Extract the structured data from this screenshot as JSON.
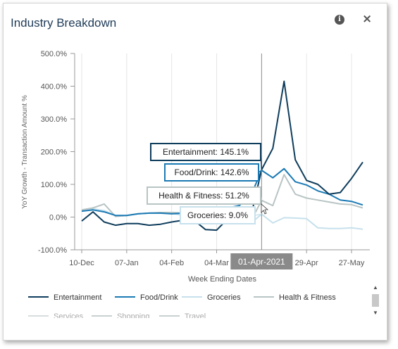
{
  "widget": {
    "title": "Industry Breakdown",
    "info_icon": "info-icon",
    "info_glyph": "i",
    "close_icon": "close-icon",
    "close_glyph": "×"
  },
  "chart_data": {
    "type": "line",
    "ylabel": "YoY Growth - Transaction Amount %",
    "xlabel": "Week Ending Dates",
    "ylim": [
      -100,
      500
    ],
    "yticks": [
      "-100.0%",
      "0.0%",
      "100.0%",
      "200.0%",
      "300.0%",
      "400.0%",
      "500.0%"
    ],
    "xticks": [
      "10-Dec",
      "07-Jan",
      "04-Feb",
      "04-Mar",
      "29-Apr",
      "27-May"
    ],
    "x": [
      "10-Dec",
      "17-Dec",
      "24-Dec",
      "31-Dec",
      "07-Jan",
      "14-Jan",
      "21-Jan",
      "28-Jan",
      "04-Feb",
      "11-Feb",
      "18-Feb",
      "25-Feb",
      "04-Mar",
      "11-Mar",
      "18-Mar",
      "25-Mar",
      "01-Apr",
      "08-Apr",
      "15-Apr",
      "22-Apr",
      "29-Apr",
      "06-May",
      "13-May",
      "20-May",
      "27-May",
      "03-Jun"
    ],
    "grid": "vertical",
    "legend_position": "bottom",
    "series": [
      {
        "name": "Entertainment",
        "color": "#0f3d5c",
        "values": [
          -12,
          16,
          -15,
          -25,
          -20,
          -20,
          -25,
          -22,
          -15,
          -10,
          -10,
          -38,
          -40,
          -5,
          -10,
          -5,
          145,
          210,
          415,
          175,
          112,
          100,
          70,
          75,
          118,
          168
        ]
      },
      {
        "name": "Food/Drink",
        "color": "#1b7ab4",
        "values": [
          18,
          22,
          16,
          5,
          5,
          10,
          12,
          12,
          10,
          12,
          18,
          20,
          22,
          28,
          35,
          62,
          143,
          120,
          148,
          108,
          98,
          80,
          70,
          52,
          48,
          37
        ]
      },
      {
        "name": "Groceries",
        "color": "#c7e1ec",
        "values": [
          22,
          25,
          20,
          5,
          5,
          10,
          12,
          12,
          12,
          5,
          -10,
          -20,
          -10,
          -5,
          -15,
          -20,
          9,
          -18,
          -2,
          -3,
          -5,
          -33,
          -35,
          -35,
          -33,
          -37
        ]
      },
      {
        "name": "Health & Fitness",
        "color": "#b9c4c4",
        "values": [
          22,
          28,
          40,
          2,
          5,
          10,
          12,
          14,
          14,
          12,
          10,
          -10,
          -5,
          -10,
          -20,
          -15,
          51,
          35,
          130,
          70,
          58,
          52,
          46,
          40,
          38,
          28
        ]
      }
    ],
    "hidden_series": [
      "Services",
      "Shopping",
      "Travel"
    ],
    "hover": {
      "date_label": "01-Apr-2021",
      "tooltips": [
        {
          "series": "Entertainment",
          "text": "Entertainment: 145.1%"
        },
        {
          "series": "Food/Drink",
          "text": "Food/Drink: 142.6%"
        },
        {
          "series": "Health & Fitness",
          "text": "Health & Fitness: 51.2%"
        },
        {
          "series": "Groceries",
          "text": "Groceries: 9.0%"
        }
      ]
    }
  },
  "legend": {
    "items": [
      {
        "label": "Entertainment",
        "color": "#0f3d5c"
      },
      {
        "label": "Food/Drink",
        "color": "#1b7ab4"
      },
      {
        "label": "Groceries",
        "color": "#c7e1ec"
      },
      {
        "label": "Health & Fitness",
        "color": "#b9c4c4"
      },
      {
        "label": "Services",
        "color": "#d9dddd"
      },
      {
        "label": "Shopping",
        "color": "#c9cfcf"
      },
      {
        "label": "Travel",
        "color": "#c9cfcf"
      }
    ],
    "scroll_up_glyph": "▲",
    "scroll_down_glyph": "▼"
  }
}
